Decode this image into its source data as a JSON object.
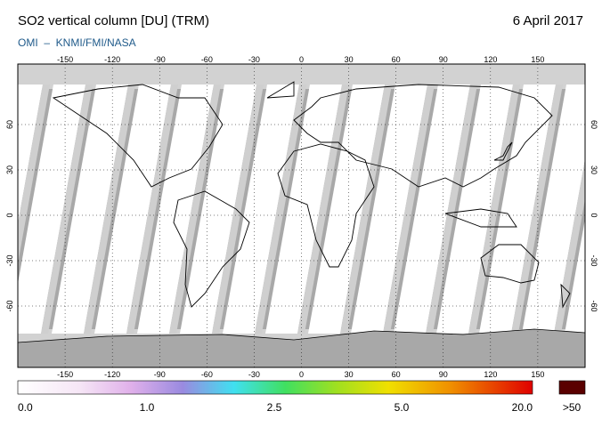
{
  "header": {
    "title": "SO2 vertical column [DU] (TRM)",
    "date": "6 April 2017",
    "credit": "OMI  –  KNMI/FMI/NASA"
  },
  "map": {
    "longitudes": [
      -150,
      -120,
      -90,
      -60,
      -30,
      0,
      30,
      60,
      90,
      120,
      150
    ],
    "latitudes": [
      60,
      30,
      0,
      -30,
      -60
    ]
  },
  "colorbar": {
    "labels": [
      "0.0",
      "1.0",
      "2.5",
      "5.0",
      "20.0"
    ],
    "overflow_label": ">50"
  }
}
